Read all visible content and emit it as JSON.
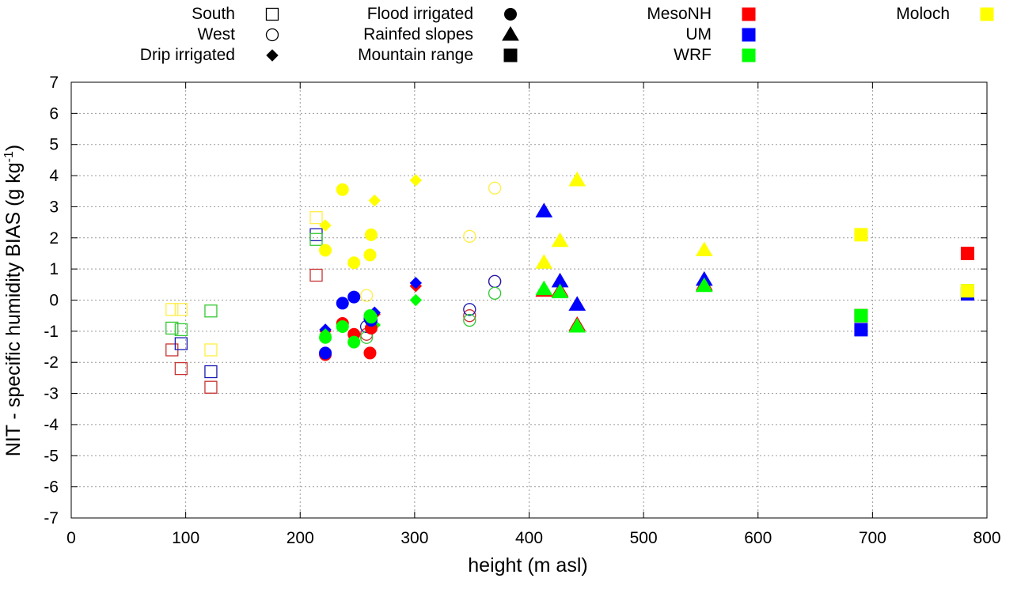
{
  "chart_data": {
    "type": "scatter",
    "title": "",
    "xlabel": "height (m asl)",
    "ylabel_main": "NIT - specific humidity BIAS (g kg",
    "ylabel_sup": "-1",
    "ylabel_end": ")",
    "xlim": [
      0,
      800
    ],
    "ylim": [
      -7,
      7
    ],
    "x_ticks": [
      0,
      100,
      200,
      300,
      400,
      500,
      600,
      700,
      800
    ],
    "y_ticks": [
      -7,
      -6,
      -5,
      -4,
      -3,
      -2,
      -1,
      0,
      1,
      2,
      3,
      4,
      5,
      6,
      7
    ],
    "grid": true,
    "legend_placement": "top",
    "legend": {
      "sites": [
        {
          "label": "South",
          "marker": "square-open"
        },
        {
          "label": "West",
          "marker": "circle-open"
        },
        {
          "label": "Drip irrigated",
          "marker": "diamond"
        },
        {
          "label": "Flood irrigated",
          "marker": "circle"
        },
        {
          "label": "Rainfed slopes",
          "marker": "triangle"
        },
        {
          "label": "Mountain range",
          "marker": "square"
        }
      ],
      "models": [
        {
          "label": "MesoNH",
          "color": "#ff0000"
        },
        {
          "label": "UM",
          "color": "#0000ff"
        },
        {
          "label": "WRF",
          "color": "#00ff00"
        },
        {
          "label": "Moloch",
          "color": "#ffff00"
        }
      ]
    },
    "model_colors": {
      "MesoNH": "#ff0000",
      "MesoNH_open": "#c83232",
      "UM": "#0000ff",
      "UM_open": "#1a1ab4",
      "WRF": "#00ff00",
      "WRF_open": "#32c832",
      "Moloch": "#ffff00",
      "Moloch_open": "#ffee44"
    },
    "series": [
      {
        "model": "MesoNH",
        "site": "South",
        "marker": "square-open",
        "points": [
          [
            88,
            -1.6
          ],
          [
            96,
            -2.2
          ],
          [
            122,
            -2.8
          ],
          [
            214,
            0.8
          ]
        ]
      },
      {
        "model": "UM",
        "site": "South",
        "marker": "square-open",
        "points": [
          [
            96,
            -1.4
          ],
          [
            122,
            -2.3
          ],
          [
            214,
            2.1
          ]
        ]
      },
      {
        "model": "WRF",
        "site": "South",
        "marker": "square-open",
        "points": [
          [
            88,
            -0.9
          ],
          [
            96,
            -0.95
          ],
          [
            122,
            -0.35
          ],
          [
            214,
            1.95
          ]
        ]
      },
      {
        "model": "Moloch",
        "site": "South",
        "marker": "square-open",
        "points": [
          [
            88,
            -0.3
          ],
          [
            96,
            -0.3
          ],
          [
            122,
            -1.6
          ],
          [
            214,
            2.65
          ]
        ]
      },
      {
        "model": "MesoNH",
        "site": "West",
        "marker": "circle-open",
        "points": [
          [
            258,
            -1.1
          ],
          [
            348,
            -0.5
          ],
          [
            370,
            0.6
          ]
        ]
      },
      {
        "model": "UM",
        "site": "West",
        "marker": "circle-open",
        "points": [
          [
            258,
            -0.85
          ],
          [
            348,
            -0.3
          ],
          [
            370,
            0.6
          ]
        ]
      },
      {
        "model": "WRF",
        "site": "West",
        "marker": "circle-open",
        "points": [
          [
            258,
            -1.2
          ],
          [
            348,
            -0.65
          ],
          [
            370,
            0.22
          ]
        ]
      },
      {
        "model": "Moloch",
        "site": "West",
        "marker": "circle-open",
        "points": [
          [
            258,
            0.15
          ],
          [
            348,
            2.05
          ],
          [
            370,
            3.6
          ]
        ]
      },
      {
        "model": "MesoNH",
        "site": "Drip irrigated",
        "marker": "diamond",
        "points": [
          [
            222,
            -1.0
          ],
          [
            265,
            -0.45
          ],
          [
            301,
            0.45
          ]
        ]
      },
      {
        "model": "UM",
        "site": "Drip irrigated",
        "marker": "diamond",
        "points": [
          [
            222,
            -0.95
          ],
          [
            265,
            -0.4
          ],
          [
            301,
            0.55
          ]
        ]
      },
      {
        "model": "WRF",
        "site": "Drip irrigated",
        "marker": "diamond",
        "points": [
          [
            222,
            -1.1
          ],
          [
            265,
            -0.8
          ],
          [
            301,
            0.0
          ]
        ]
      },
      {
        "model": "Moloch",
        "site": "Drip irrigated",
        "marker": "diamond",
        "points": [
          [
            222,
            2.4
          ],
          [
            265,
            3.2
          ],
          [
            301,
            3.85
          ]
        ]
      },
      {
        "model": "MesoNH",
        "site": "Flood irrigated",
        "marker": "circle",
        "points": [
          [
            222,
            -1.75
          ],
          [
            237,
            -0.75
          ],
          [
            247,
            -1.1
          ],
          [
            261,
            -1.7
          ],
          [
            262,
            -0.9
          ]
        ]
      },
      {
        "model": "UM",
        "site": "Flood irrigated",
        "marker": "circle",
        "points": [
          [
            222,
            -1.7
          ],
          [
            237,
            -0.1
          ],
          [
            247,
            0.1
          ],
          [
            261,
            -0.6
          ],
          [
            262,
            -0.65
          ]
        ]
      },
      {
        "model": "WRF",
        "site": "Flood irrigated",
        "marker": "circle",
        "points": [
          [
            222,
            -1.2
          ],
          [
            237,
            -0.85
          ],
          [
            247,
            -1.35
          ],
          [
            261,
            -0.5
          ],
          [
            262,
            -0.55
          ]
        ]
      },
      {
        "model": "Moloch",
        "site": "Flood irrigated",
        "marker": "circle",
        "points": [
          [
            222,
            1.6
          ],
          [
            237,
            3.55
          ],
          [
            247,
            1.2
          ],
          [
            261,
            1.45
          ],
          [
            262,
            2.1
          ]
        ]
      },
      {
        "model": "MesoNH",
        "site": "Rainfed slopes",
        "marker": "triangle",
        "points": [
          [
            413,
            0.3
          ],
          [
            427,
            0.3
          ],
          [
            442,
            -0.8
          ],
          [
            553,
            0.5
          ]
        ]
      },
      {
        "model": "UM",
        "site": "Rainfed slopes",
        "marker": "triangle",
        "points": [
          [
            413,
            2.85
          ],
          [
            427,
            0.6
          ],
          [
            442,
            -0.15
          ],
          [
            553,
            0.65
          ]
        ]
      },
      {
        "model": "WRF",
        "site": "Rainfed slopes",
        "marker": "triangle",
        "points": [
          [
            413,
            0.35
          ],
          [
            427,
            0.25
          ],
          [
            442,
            -0.85
          ],
          [
            553,
            0.45
          ]
        ]
      },
      {
        "model": "Moloch",
        "site": "Rainfed slopes",
        "marker": "triangle",
        "points": [
          [
            413,
            1.2
          ],
          [
            427,
            1.9
          ],
          [
            442,
            3.85
          ],
          [
            553,
            1.6
          ]
        ]
      },
      {
        "model": "MesoNH",
        "site": "Mountain range",
        "marker": "square",
        "points": [
          [
            690,
            -0.5
          ],
          [
            783,
            1.5
          ]
        ]
      },
      {
        "model": "UM",
        "site": "Mountain range",
        "marker": "square",
        "points": [
          [
            690,
            -0.95
          ],
          [
            783,
            0.2
          ]
        ]
      },
      {
        "model": "WRF",
        "site": "Mountain range",
        "marker": "square",
        "points": [
          [
            690,
            -0.5
          ],
          [
            783,
            0.3
          ]
        ]
      },
      {
        "model": "Moloch",
        "site": "Mountain range",
        "marker": "square",
        "points": [
          [
            690,
            2.1
          ],
          [
            783,
            0.3
          ]
        ]
      }
    ]
  }
}
